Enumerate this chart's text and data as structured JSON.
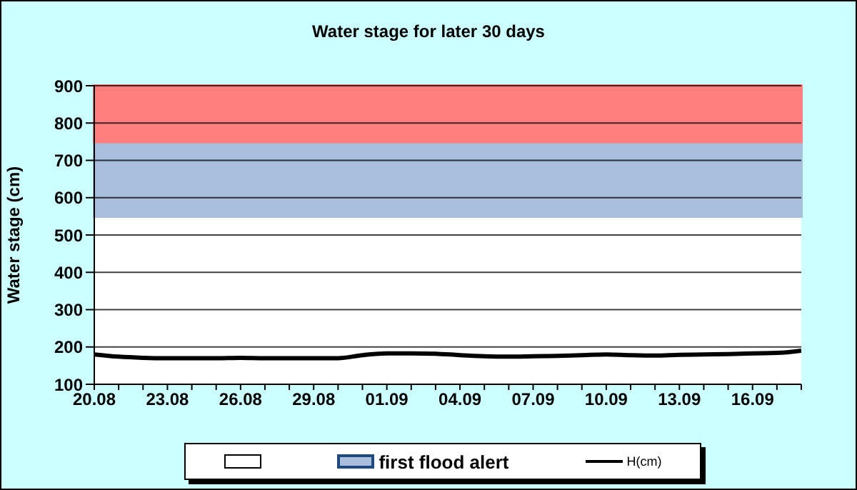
{
  "chart_data": {
    "type": "line",
    "title": "Water stage for later 30 days",
    "ylabel": "Water stage (cm)",
    "categories": [
      "20.08",
      null,
      null,
      "23.08",
      null,
      null,
      "26.08",
      null,
      null,
      "29.08",
      null,
      null,
      "01.09",
      null,
      null,
      "04.09",
      null,
      null,
      "07.09",
      null,
      null,
      "10.09",
      null,
      null,
      "13.09",
      null,
      null,
      "16.09",
      null,
      null
    ],
    "series": [
      {
        "name": "H(cm)",
        "color": "#000000",
        "values": [
          180,
          174,
          171,
          170,
          170,
          170,
          171,
          170,
          170,
          170,
          170,
          178,
          183,
          183,
          182,
          178,
          175,
          174,
          175,
          176,
          178,
          180,
          178,
          177,
          179,
          180,
          181,
          183,
          184,
          190
        ]
      }
    ],
    "ylim": [
      100,
      900
    ],
    "yticks": [
      100,
      200,
      300,
      400,
      500,
      600,
      700,
      800,
      900
    ],
    "grid": "y",
    "legend": "bottom",
    "line_style": "solid",
    "marker": "none",
    "bands": [
      {
        "axis": "y",
        "from": 550,
        "to": 750,
        "label": "first flood alert",
        "color": "#a7bfdd"
      },
      {
        "axis": "y",
        "from": 750,
        "to": 900,
        "color": "#ff7f7f"
      }
    ]
  }
}
